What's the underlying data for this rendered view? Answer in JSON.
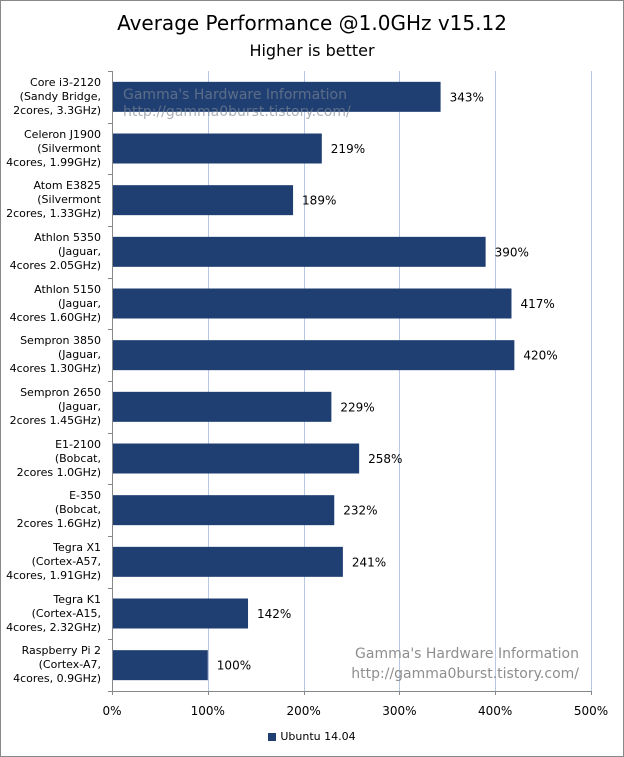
{
  "chart_data": {
    "type": "bar",
    "orientation": "horizontal",
    "title": "Average Performance @1.0GHz v15.12",
    "subtitle": "Higher is better",
    "categories": [
      "Core i3-2120\n(Sandy Bridge,\n2cores, 3.3GHz)",
      "Celeron J1900\n(Silvermont\n4cores, 1.99GHz)",
      "Atom E3825\n(Silvermont\n2cores, 1.33GHz)",
      "Athlon 5350\n(Jaguar,\n4cores 2.05GHz)",
      "Athlon 5150\n(Jaguar,\n4cores 1.60GHz)",
      "Sempron 3850\n(Jaguar,\n4cores 1.30GHz)",
      "Sempron 2650\n(Jaguar,\n2cores 1.45GHz)",
      "E1-2100\n(Bobcat,\n2cores 1.0GHz)",
      "E-350\n(Bobcat,\n2cores 1.6GHz)",
      "Tegra X1\n(Cortex-A57,\n4cores, 1.91GHz)",
      "Tegra K1\n(Cortex-A15,\n4cores, 2.32GHz)",
      "Raspberry Pi 2\n(Cortex-A7,\n4cores, 0.9GHz)"
    ],
    "series": [
      {
        "name": "Ubuntu 14.04",
        "values": [
          343,
          219,
          189,
          390,
          417,
          420,
          229,
          258,
          232,
          241,
          142,
          100
        ],
        "labels": [
          "343%",
          "219%",
          "189%",
          "390%",
          "417%",
          "420%",
          "229%",
          "258%",
          "232%",
          "241%",
          "142%",
          "100%"
        ]
      }
    ],
    "xlim": [
      0,
      500
    ],
    "x_ticks": [
      0,
      100,
      200,
      300,
      400,
      500
    ],
    "x_tick_labels": [
      "0%",
      "100%",
      "200%",
      "300%",
      "400%",
      "500%"
    ],
    "xlabel": "",
    "ylabel": "",
    "grid": "vertical",
    "legend_position": "bottom",
    "colors": {
      "bar": "#1f3f73",
      "grid": "#b8c7e6",
      "axis": "#888888"
    }
  },
  "watermarks": {
    "top": "Gamma's Hardware Information\nhttp://gamma0burst.tistory.com/",
    "bottom": "Gamma's Hardware Information\nhttp://gamma0burst.tistory.com/"
  }
}
